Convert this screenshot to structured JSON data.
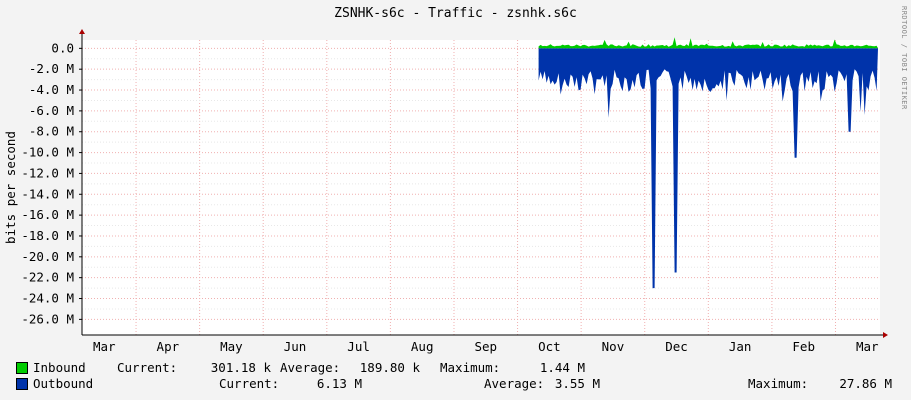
{
  "title": "ZSNHK-s6c - Traffic - zsnhk.s6c",
  "side_label": "RRDTOOL / TOBI OETIKER",
  "chart_data": {
    "type": "area",
    "ylabel": "bits per second",
    "xlabel": "",
    "x_ticks": [
      "Mar",
      "Apr",
      "May",
      "Jun",
      "Jul",
      "Aug",
      "Sep",
      "Oct",
      "Nov",
      "Dec",
      "Jan",
      "Feb",
      "Mar"
    ],
    "y_ticks": [
      "0.0",
      "-2.0 M",
      "-4.0 M",
      "-6.0 M",
      "-8.0 M",
      "-10.0 M",
      "-12.0 M",
      "-14.0 M",
      "-16.0 M",
      "-18.0 M",
      "-20.0 M",
      "-22.0 M",
      "-24.0 M",
      "-26.0 M"
    ],
    "ylim": [
      -27.5,
      0.8
    ],
    "y_unit": "M bits per second",
    "grid": true,
    "data_start_month": "Oct",
    "series": [
      {
        "name": "Inbound",
        "color": "#00cc00",
        "current": "301.18 k",
        "average": "189.80 k",
        "maximum": "1.44 M",
        "sign": "positive"
      },
      {
        "name": "Outbound",
        "color": "#0033aa",
        "current": "6.13 M",
        "average": "3.55 M",
        "maximum": "27.86 M",
        "sign": "negative",
        "spikes": [
          {
            "month": "Dec",
            "value": -23.0
          },
          {
            "month": "Dec",
            "value": -21.5
          },
          {
            "month": "Feb",
            "value": -10.5
          },
          {
            "month": "Mar",
            "value": -8.0
          }
        ]
      }
    ]
  },
  "legend": {
    "current_label": "Current:",
    "average_label": "Average:",
    "maximum_label": "Maximum:"
  }
}
